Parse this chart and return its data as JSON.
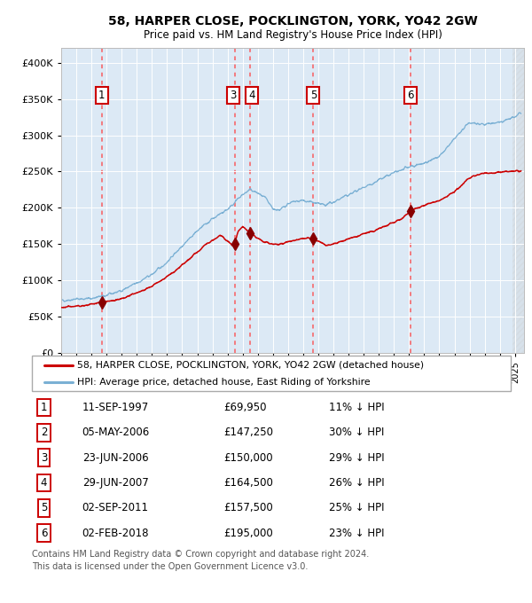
{
  "title": "58, HARPER CLOSE, POCKLINGTON, YORK, YO42 2GW",
  "subtitle": "Price paid vs. HM Land Registry's House Price Index (HPI)",
  "plot_bg_color": "#dce9f5",
  "hpi_line_color": "#7ab0d4",
  "price_line_color": "#cc0000",
  "marker_color": "#880000",
  "vline_color": "#ff4444",
  "ylim": [
    0,
    420000
  ],
  "yticks": [
    0,
    50000,
    100000,
    150000,
    200000,
    250000,
    300000,
    350000,
    400000
  ],
  "xlim_start": 1995.0,
  "xlim_end": 2025.6,
  "transactions": [
    {
      "num": 1,
      "date_str": "11-SEP-1997",
      "year": 1997.69,
      "price": 69950
    },
    {
      "num": 2,
      "date_str": "05-MAY-2006",
      "year": 2006.34,
      "price": 147250
    },
    {
      "num": 3,
      "date_str": "23-JUN-2006",
      "year": 2006.47,
      "price": 150000
    },
    {
      "num": 4,
      "date_str": "29-JUN-2007",
      "year": 2007.49,
      "price": 164500
    },
    {
      "num": 5,
      "date_str": "02-SEP-2011",
      "year": 2011.67,
      "price": 157500
    },
    {
      "num": 6,
      "date_str": "02-FEB-2018",
      "year": 2018.09,
      "price": 195000
    }
  ],
  "show_marker": [
    1,
    3,
    4,
    5,
    6
  ],
  "show_vline": [
    1,
    3,
    4,
    5,
    6
  ],
  "show_label": [
    1,
    3,
    4,
    5,
    6
  ],
  "label_x_offset": {
    "1": 0,
    "3": -0.12,
    "4": 0.12,
    "5": 0,
    "6": 0
  },
  "legend_label_price": "58, HARPER CLOSE, POCKLINGTON, YORK, YO42 2GW (detached house)",
  "legend_label_hpi": "HPI: Average price, detached house, East Riding of Yorkshire",
  "footer1": "Contains HM Land Registry data © Crown copyright and database right 2024.",
  "footer2": "This data is licensed under the Open Government Licence v3.0.",
  "table_rows": [
    [
      1,
      "11-SEP-1997",
      "£69,950",
      "11% ↓ HPI"
    ],
    [
      2,
      "05-MAY-2006",
      "£147,250",
      "30% ↓ HPI"
    ],
    [
      3,
      "23-JUN-2006",
      "£150,000",
      "29% ↓ HPI"
    ],
    [
      4,
      "29-JUN-2007",
      "£164,500",
      "26% ↓ HPI"
    ],
    [
      5,
      "02-SEP-2011",
      "£157,500",
      "25% ↓ HPI"
    ],
    [
      6,
      "02-FEB-2018",
      "£195,000",
      "23% ↓ HPI"
    ]
  ]
}
